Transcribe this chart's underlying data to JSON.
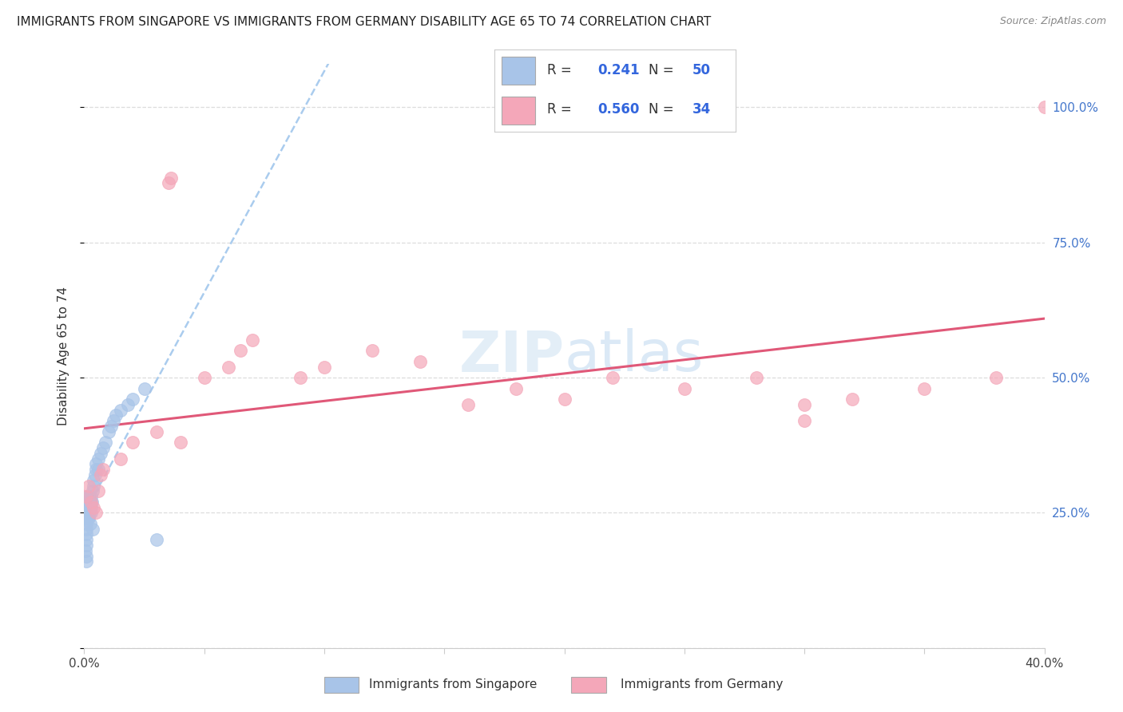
{
  "title": "IMMIGRANTS FROM SINGAPORE VS IMMIGRANTS FROM GERMANY DISABILITY AGE 65 TO 74 CORRELATION CHART",
  "source": "Source: ZipAtlas.com",
  "ylabel": "Disability Age 65 to 74",
  "singapore_R": 0.241,
  "singapore_N": 50,
  "germany_R": 0.56,
  "germany_N": 34,
  "singapore_color": "#a8c4e8",
  "germany_color": "#f4a7b9",
  "singapore_line_color": "#6699cc",
  "germany_line_color": "#e05878",
  "dashed_line_color": "#aaccee",
  "background_color": "#ffffff",
  "grid_color": "#dddddd",
  "xlim": [
    0.0,
    0.4
  ],
  "ylim": [
    0.0,
    1.08
  ],
  "title_color": "#222222",
  "source_color": "#888888",
  "axis_label_color": "#333333",
  "right_tick_color": "#4477cc",
  "watermark_color": "#d8e8f5",
  "sg_x": [
    0.0004,
    0.0006,
    0.0007,
    0.0008,
    0.001,
    0.001,
    0.0012,
    0.0013,
    0.0014,
    0.0015,
    0.0016,
    0.0018,
    0.002,
    0.002,
    0.002,
    0.0022,
    0.0024,
    0.0025,
    0.003,
    0.003,
    0.003,
    0.0032,
    0.0035,
    0.004,
    0.004,
    0.0045,
    0.005,
    0.005,
    0.006,
    0.006,
    0.007,
    0.008,
    0.009,
    0.01,
    0.011,
    0.012,
    0.013,
    0.015,
    0.018,
    0.02,
    0.025,
    0.03,
    0.001,
    0.001,
    0.001,
    0.001,
    0.0005,
    0.0008,
    0.0009,
    0.0035
  ],
  "sg_y": [
    0.27,
    0.25,
    0.24,
    0.26,
    0.28,
    0.23,
    0.27,
    0.25,
    0.26,
    0.24,
    0.25,
    0.27,
    0.26,
    0.28,
    0.24,
    0.25,
    0.23,
    0.27,
    0.28,
    0.26,
    0.25,
    0.27,
    0.29,
    0.3,
    0.31,
    0.32,
    0.33,
    0.34,
    0.35,
    0.33,
    0.36,
    0.37,
    0.38,
    0.4,
    0.41,
    0.42,
    0.43,
    0.44,
    0.45,
    0.46,
    0.48,
    0.2,
    0.22,
    0.21,
    0.2,
    0.19,
    0.18,
    0.17,
    0.16,
    0.22
  ],
  "de_x": [
    0.001,
    0.002,
    0.003,
    0.004,
    0.005,
    0.006,
    0.007,
    0.008,
    0.015,
    0.02,
    0.03,
    0.04,
    0.05,
    0.06,
    0.065,
    0.07,
    0.09,
    0.1,
    0.12,
    0.14,
    0.16,
    0.18,
    0.2,
    0.22,
    0.035,
    0.036,
    0.25,
    0.28,
    0.3,
    0.32,
    0.35,
    0.38,
    0.4,
    0.3
  ],
  "de_y": [
    0.28,
    0.3,
    0.27,
    0.26,
    0.25,
    0.29,
    0.32,
    0.33,
    0.35,
    0.38,
    0.4,
    0.38,
    0.5,
    0.52,
    0.55,
    0.57,
    0.5,
    0.52,
    0.55,
    0.53,
    0.45,
    0.48,
    0.46,
    0.5,
    0.86,
    0.87,
    0.48,
    0.5,
    0.45,
    0.46,
    0.48,
    0.5,
    1.0,
    0.42
  ]
}
